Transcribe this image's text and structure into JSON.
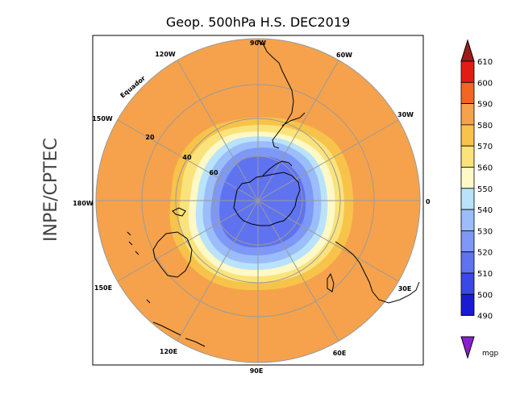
{
  "title": "Geop. 500hPa H.S. DEC2019",
  "side_label": "INPE/CPTEC",
  "longitude_labels": {
    "lon_90W": "90W",
    "lon_60W": "60W",
    "lon_30W": "30W",
    "lon_0": "0",
    "lon_30E": "30E",
    "lon_60E": "60E",
    "lon_90E": "90E",
    "lon_120E": "120E",
    "lon_150E": "150E",
    "lon_180W": "180W",
    "lon_150W": "150W",
    "lon_120W": "120W"
  },
  "latitude_labels": {
    "lat_20": "20",
    "lat_40": "40",
    "lat_60": "60"
  },
  "equator_label": "Equador",
  "colorbar": {
    "unit": "mgp",
    "levels": [
      "610",
      "600",
      "590",
      "580",
      "570",
      "560",
      "550",
      "540",
      "530",
      "520",
      "510",
      "500",
      "490"
    ],
    "colors": [
      "#9e1a1a",
      "#e21c14",
      "#f26522",
      "#f6a24c",
      "#f8c34a",
      "#fbe37b",
      "#fff8c7",
      "#b9e3fb",
      "#9bbdf9",
      "#7d98f6",
      "#5f73f0",
      "#3a48e8",
      "#1a1ad4",
      "#8b1fd0"
    ]
  },
  "legend_colors": {
    "ocean_fill": "#f6a24c",
    "level_570": "#f8c34a",
    "level_560": "#fbe37b",
    "level_550": "#fff8c7",
    "level_540": "#b9e3fb",
    "level_530": "#9bbdf9",
    "level_520": "#7d98f6",
    "level_510": "#5f73f0"
  }
}
